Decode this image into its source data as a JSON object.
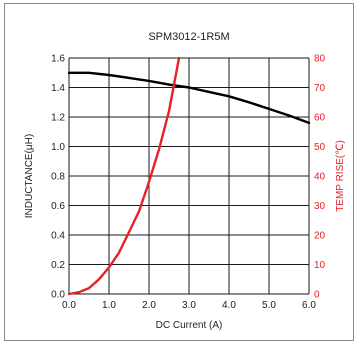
{
  "chart_data": {
    "type": "line",
    "title": "SPM3012-1R5M",
    "xlabel": "DC Current (A)",
    "ylabel_left": "INDUCTANCE(μH)",
    "ylabel_right": "TEMP RISE(℃)",
    "xlim": [
      0,
      6
    ],
    "ylim_left": [
      0,
      1.6
    ],
    "ylim_right": [
      0,
      80
    ],
    "x_ticks": [
      "0.0",
      "1.0",
      "2.0",
      "3.0",
      "4.0",
      "5.0",
      "6.0"
    ],
    "y_ticks_left": [
      "0.0",
      "0.2",
      "0.4",
      "0.6",
      "0.8",
      "1.0",
      "1.2",
      "1.4",
      "1.6"
    ],
    "y_ticks_right": [
      "0",
      "10",
      "20",
      "30",
      "40",
      "50",
      "60",
      "70",
      "80"
    ],
    "grid": true,
    "series": [
      {
        "axis": "left",
        "color": "#000000",
        "x": [
          0,
          0.5,
          1.0,
          1.5,
          2.0,
          2.5,
          3.0,
          3.5,
          4.0,
          4.5,
          5.0,
          5.5,
          6.0
        ],
        "y": [
          1.5,
          1.5,
          1.485,
          1.465,
          1.445,
          1.42,
          1.4,
          1.37,
          1.34,
          1.3,
          1.255,
          1.21,
          1.16
        ]
      },
      {
        "axis": "right",
        "color": "#e52228",
        "x": [
          0,
          0.25,
          0.5,
          0.75,
          1.0,
          1.25,
          1.5,
          1.75,
          2.0,
          2.25,
          2.5,
          2.75
        ],
        "y": [
          0,
          0.6,
          2,
          5,
          9,
          14,
          21,
          28,
          38,
          49,
          62,
          80
        ]
      }
    ]
  }
}
